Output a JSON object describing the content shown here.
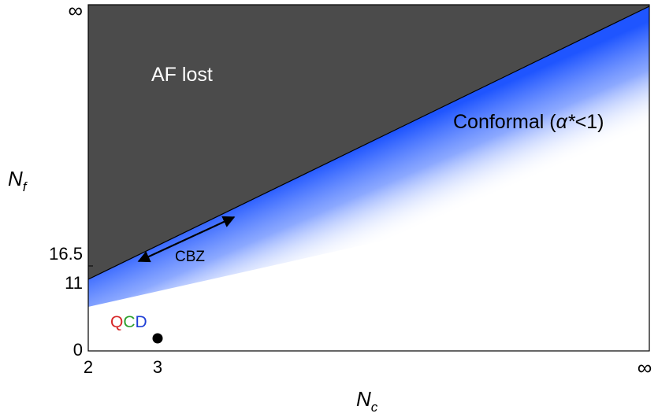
{
  "diagram": {
    "y_axis_label": {
      "main": "N",
      "sub": "f"
    },
    "x_axis_label": {
      "main": "N",
      "sub": "c"
    },
    "y_ticks": [
      "∞",
      "16.5",
      "11",
      "0"
    ],
    "x_ticks": [
      "2",
      "3",
      "∞"
    ],
    "regions": {
      "af_lost": "AF lost",
      "conformal_prefix": "Conformal (",
      "conformal_symbol": "α*",
      "conformal_suffix": "<1)"
    },
    "cbz_label": "CBZ",
    "qcd": {
      "letters": [
        "Q",
        "C",
        "D"
      ],
      "colors": [
        "#d62728",
        "#2ca02c",
        "#1f3fd6"
      ]
    },
    "colors": {
      "af_region": "#4b4b4b",
      "conformal_band": "#1f55ff",
      "qcd_point": "#000000"
    }
  }
}
